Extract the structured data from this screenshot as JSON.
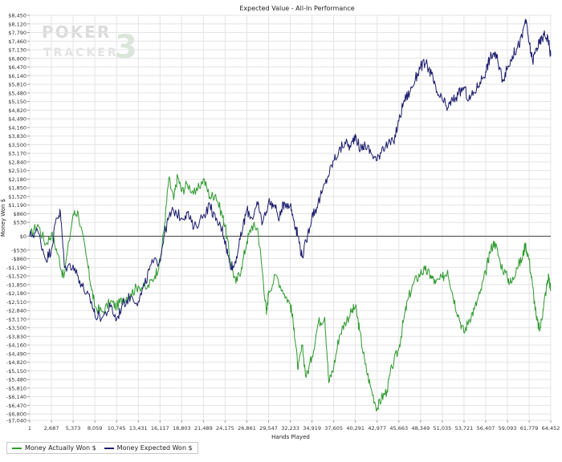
{
  "chart_data": {
    "type": "line",
    "title": "Expected Value - All-In Performance",
    "xlabel": "Hands Played",
    "ylabel": "Money Won $",
    "xlim": [
      1,
      64452
    ],
    "ylim": [
      -7040,
      8450
    ],
    "x_ticks": [
      1,
      2687,
      5373,
      8059,
      10745,
      13431,
      16117,
      18803,
      21489,
      24175,
      26861,
      29547,
      32233,
      34919,
      37605,
      40291,
      42977,
      45663,
      48349,
      51035,
      53721,
      56407,
      59093,
      61779,
      64452
    ],
    "x_tick_labels": [
      "1",
      "2,687",
      "5,373",
      "8,059",
      "10,745",
      "13,431",
      "16,117",
      "18,803",
      "21,489",
      "24,175",
      "26,861",
      "29,547",
      "32,233",
      "34,919",
      "37,605",
      "40,291",
      "42,977",
      "45,663",
      "48,349",
      "51,035",
      "53,721",
      "56,407",
      "59,093",
      "61,779",
      "64,452"
    ],
    "y_ticks": [
      8450,
      8120,
      7790,
      7460,
      7130,
      6800,
      6470,
      6140,
      5810,
      5480,
      5150,
      4820,
      4490,
      4160,
      3830,
      3500,
      3170,
      2840,
      2510,
      2180,
      1850,
      1520,
      1190,
      860,
      530,
      0,
      -530,
      -860,
      -1190,
      -1520,
      -1850,
      -2180,
      -2510,
      -2840,
      -3170,
      -3500,
      -3830,
      -4160,
      -4490,
      -4820,
      -5150,
      -5480,
      -5810,
      -6140,
      -6470,
      -6800,
      -7040
    ],
    "y_tick_labels": [
      "$8,450",
      "$8,120",
      "$7,790",
      "$7,460",
      "$7,130",
      "$6,800",
      "$6,470",
      "$6,140",
      "$5,810",
      "$5,480",
      "$5,150",
      "$4,820",
      "$4,490",
      "$4,160",
      "$3,830",
      "$3,500",
      "$3,170",
      "$2,840",
      "$2,510",
      "$2,180",
      "$1,850",
      "$1,520",
      "$1,190",
      "$860",
      "$530",
      "$0",
      "-$530",
      "-$860",
      "-$1,190",
      "-$1,520",
      "-$1,850",
      "-$2,180",
      "-$2,510",
      "-$2,840",
      "-$3,170",
      "-$3,500",
      "-$3,830",
      "-$4,160",
      "-$4,490",
      "-$4,820",
      "-$5,150",
      "-$5,480",
      "-$5,810",
      "-$6,140",
      "-$6,470",
      "-$6,800",
      "-$7,040"
    ],
    "grid": true,
    "legend_position": "bottom-left",
    "series": [
      {
        "name": "Money Actually Won $",
        "color": "#2e9a2e",
        "points": [
          [
            1,
            0
          ],
          [
            1000,
            450
          ],
          [
            2000,
            -300
          ],
          [
            2687,
            100
          ],
          [
            3500,
            -700
          ],
          [
            4200,
            -1600
          ],
          [
            5373,
            850
          ],
          [
            6000,
            900
          ],
          [
            7000,
            -800
          ],
          [
            7600,
            -1900
          ],
          [
            8059,
            -2700
          ],
          [
            9000,
            -2900
          ],
          [
            10000,
            -2500
          ],
          [
            10745,
            -2700
          ],
          [
            11500,
            -2400
          ],
          [
            12500,
            -2200
          ],
          [
            13431,
            -1900
          ],
          [
            14500,
            -2000
          ],
          [
            15500,
            -1500
          ],
          [
            16117,
            -1000
          ],
          [
            16700,
            500
          ],
          [
            17200,
            2200
          ],
          [
            17800,
            1400
          ],
          [
            18300,
            2300
          ],
          [
            18803,
            1700
          ],
          [
            19500,
            2000
          ],
          [
            20500,
            1600
          ],
          [
            21489,
            2200
          ],
          [
            22300,
            1500
          ],
          [
            23000,
            1600
          ],
          [
            23800,
            800
          ],
          [
            24175,
            400
          ],
          [
            24800,
            -900
          ],
          [
            25500,
            -1800
          ],
          [
            26200,
            -1200
          ],
          [
            26861,
            -200
          ],
          [
            27500,
            400
          ],
          [
            28200,
            300
          ],
          [
            28800,
            -1400
          ],
          [
            29300,
            -3000
          ],
          [
            29547,
            -2100
          ],
          [
            30500,
            -1500
          ],
          [
            31500,
            -2200
          ],
          [
            32233,
            -2600
          ],
          [
            32700,
            -3500
          ],
          [
            33200,
            -5100
          ],
          [
            33700,
            -4200
          ],
          [
            34200,
            -5400
          ],
          [
            34919,
            -4600
          ],
          [
            35700,
            -3300
          ],
          [
            36500,
            -3100
          ],
          [
            37000,
            -5600
          ],
          [
            37605,
            -5000
          ],
          [
            38300,
            -3800
          ],
          [
            39000,
            -3300
          ],
          [
            39800,
            -2900
          ],
          [
            40291,
            -2700
          ],
          [
            40800,
            -3600
          ],
          [
            41500,
            -4900
          ],
          [
            42200,
            -5800
          ],
          [
            42977,
            -6600
          ],
          [
            43500,
            -6200
          ],
          [
            44200,
            -5900
          ],
          [
            44800,
            -5000
          ],
          [
            45663,
            -4300
          ],
          [
            46200,
            -3300
          ],
          [
            46800,
            -2400
          ],
          [
            47500,
            -1800
          ],
          [
            48349,
            -1400
          ],
          [
            48900,
            -1300
          ],
          [
            49600,
            -1500
          ],
          [
            50200,
            -1800
          ],
          [
            51035,
            -1600
          ],
          [
            51700,
            -1300
          ],
          [
            52300,
            -2200
          ],
          [
            53000,
            -3000
          ],
          [
            53721,
            -3700
          ],
          [
            54300,
            -3200
          ],
          [
            55000,
            -2800
          ],
          [
            55700,
            -2200
          ],
          [
            56407,
            -1400
          ],
          [
            56900,
            -600
          ],
          [
            57500,
            -200
          ],
          [
            58200,
            -1000
          ],
          [
            59093,
            -1600
          ],
          [
            59600,
            -1800
          ],
          [
            60200,
            -1200
          ],
          [
            60900,
            -900
          ],
          [
            61300,
            -300
          ],
          [
            61779,
            -900
          ],
          [
            62200,
            -1900
          ],
          [
            62700,
            -3200
          ],
          [
            63100,
            -3600
          ],
          [
            63500,
            -2800
          ],
          [
            63900,
            -2000
          ],
          [
            64200,
            -1500
          ],
          [
            64452,
            -2100
          ]
        ]
      },
      {
        "name": "Money Expected Won $",
        "color": "#1c1c6e",
        "points": [
          [
            1,
            0
          ],
          [
            1000,
            200
          ],
          [
            2000,
            -900
          ],
          [
            2687,
            -500
          ],
          [
            3300,
            700
          ],
          [
            3800,
            900
          ],
          [
            4300,
            -1200
          ],
          [
            5373,
            -1100
          ],
          [
            6200,
            -1700
          ],
          [
            7000,
            -2200
          ],
          [
            7600,
            -2500
          ],
          [
            8059,
            -3000
          ],
          [
            9000,
            -3100
          ],
          [
            10000,
            -2700
          ],
          [
            10745,
            -3200
          ],
          [
            11500,
            -2600
          ],
          [
            12500,
            -2300
          ],
          [
            13431,
            -2500
          ],
          [
            14200,
            -1900
          ],
          [
            15000,
            -1100
          ],
          [
            16117,
            -900
          ],
          [
            16600,
            0
          ],
          [
            17200,
            700
          ],
          [
            17800,
            1000
          ],
          [
            18803,
            700
          ],
          [
            19500,
            900
          ],
          [
            20300,
            300
          ],
          [
            21489,
            800
          ],
          [
            22300,
            1200
          ],
          [
            23000,
            600
          ],
          [
            23800,
            300
          ],
          [
            24175,
            -200
          ],
          [
            24700,
            -1000
          ],
          [
            25200,
            -1200
          ],
          [
            25800,
            -500
          ],
          [
            26400,
            400
          ],
          [
            26861,
            1000
          ],
          [
            27500,
            700
          ],
          [
            28200,
            1200
          ],
          [
            28800,
            500
          ],
          [
            29547,
            1300
          ],
          [
            30200,
            1200
          ],
          [
            30900,
            700
          ],
          [
            31500,
            1300
          ],
          [
            32233,
            1200
          ],
          [
            32700,
            600
          ],
          [
            33200,
            0
          ],
          [
            33700,
            -800
          ],
          [
            34200,
            -200
          ],
          [
            34919,
            800
          ],
          [
            35500,
            1100
          ],
          [
            36200,
            1700
          ],
          [
            36900,
            2300
          ],
          [
            37605,
            2900
          ],
          [
            38200,
            3200
          ],
          [
            39000,
            3600
          ],
          [
            39700,
            3400
          ],
          [
            40291,
            3900
          ],
          [
            40900,
            3300
          ],
          [
            41500,
            3500
          ],
          [
            42200,
            3200
          ],
          [
            42977,
            2900
          ],
          [
            43600,
            3400
          ],
          [
            44300,
            3500
          ],
          [
            45000,
            3600
          ],
          [
            45663,
            4400
          ],
          [
            46300,
            5200
          ],
          [
            47000,
            5500
          ],
          [
            47700,
            6000
          ],
          [
            48349,
            6500
          ],
          [
            49000,
            6600
          ],
          [
            49700,
            6200
          ],
          [
            50300,
            5500
          ],
          [
            51035,
            5200
          ],
          [
            51700,
            4900
          ],
          [
            52300,
            5200
          ],
          [
            53000,
            5400
          ],
          [
            53721,
            5700
          ],
          [
            54300,
            5200
          ],
          [
            55000,
            5500
          ],
          [
            55700,
            5900
          ],
          [
            56407,
            6300
          ],
          [
            56900,
            6800
          ],
          [
            57400,
            7000
          ],
          [
            57900,
            6700
          ],
          [
            58500,
            6000
          ],
          [
            59093,
            6400
          ],
          [
            59700,
            6900
          ],
          [
            60300,
            7200
          ],
          [
            60900,
            7600
          ],
          [
            61300,
            8300
          ],
          [
            61779,
            7400
          ],
          [
            62200,
            6700
          ],
          [
            62700,
            7200
          ],
          [
            63100,
            7400
          ],
          [
            63600,
            7700
          ],
          [
            64100,
            7600
          ],
          [
            64452,
            6900
          ]
        ]
      }
    ]
  },
  "watermark": {
    "line1": "POKER",
    "line2": "TRACKER",
    "mark": "3"
  }
}
